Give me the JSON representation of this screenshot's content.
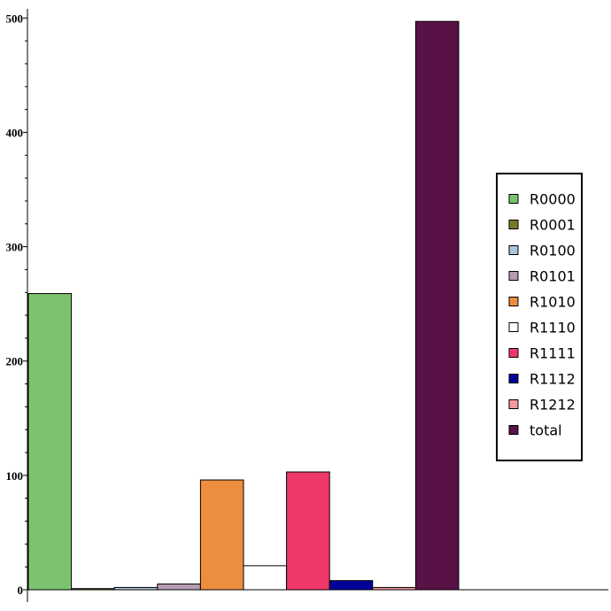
{
  "chart_data": {
    "type": "bar",
    "categories": [
      "R0000",
      "R0001",
      "R0100",
      "R0101",
      "R1010",
      "R1110",
      "R1111",
      "R1112",
      "R1212",
      "total"
    ],
    "values": [
      259,
      1,
      2,
      5,
      96,
      21,
      103,
      8,
      2,
      497
    ],
    "colors": [
      "#7dc36f",
      "#7a7a22",
      "#b0c4de",
      "#b89cb6",
      "#ed8e3e",
      "#ffffff",
      "#f03868",
      "#000099",
      "#f59aa0",
      "#581246"
    ],
    "title": "",
    "xlabel": "",
    "ylabel": "",
    "ylim": [
      0,
      508
    ],
    "yticks": [
      0,
      100,
      200,
      300,
      400,
      500
    ],
    "yticks_labels": [
      "0",
      "100",
      "200",
      "300",
      "400",
      "500"
    ],
    "ymajor_step": 100,
    "yminor_step": 20,
    "grid": false,
    "legend_position": "right",
    "legend": [
      "R0000",
      "R0001",
      "R0100",
      "R0101",
      "R1010",
      "R1110",
      "R1111",
      "R1112",
      "R1212",
      "total"
    ]
  }
}
